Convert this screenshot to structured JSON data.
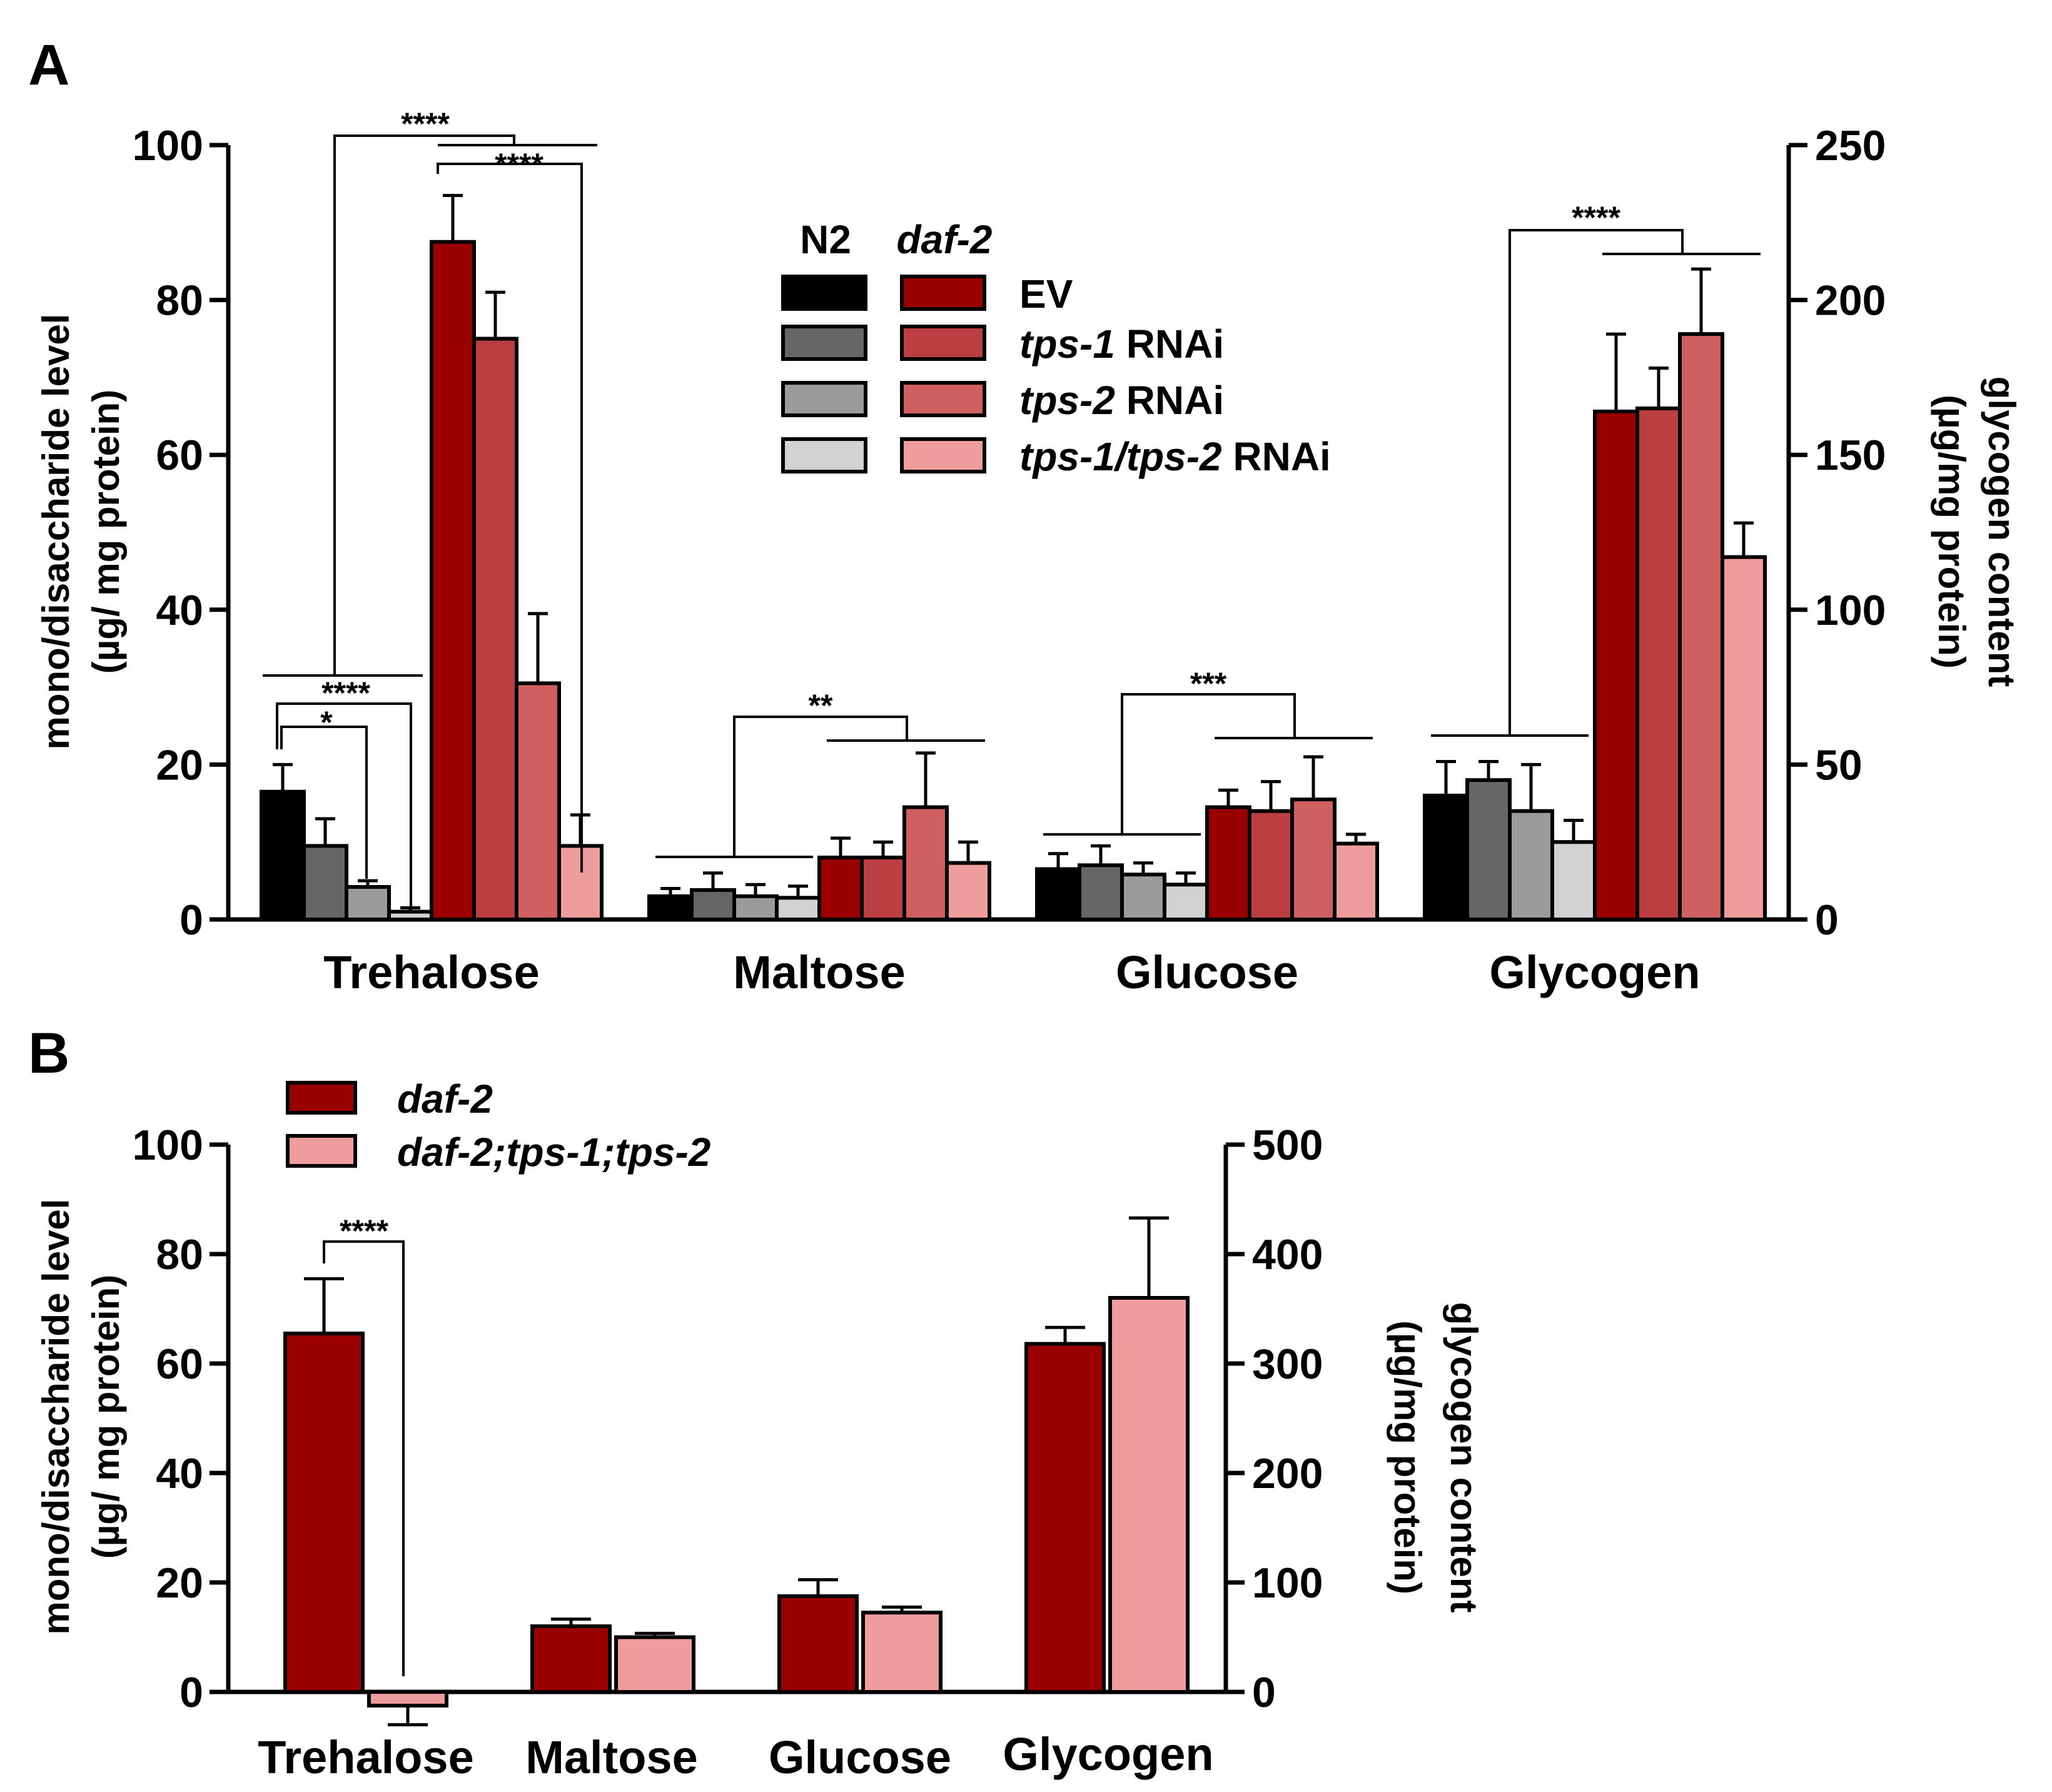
{
  "colors": {
    "N2 EV": "#000000",
    "N2 tps-1 RNAi": "#666666",
    "N2 tps-2 RNAi": "#9b9b9b",
    "N2 tps-1/tps-2 RNAi": "#d2d2d2",
    "daf-2 EV": "#9b0000",
    "daf-2 tps-1 RNAi": "#bb3f41",
    "daf-2 tps-2 RNAi": "#d05f60",
    "daf-2 tps-1/tps-2 RNAi": "#ee9c9c",
    "daf-2 (B)": "#9b0000",
    "daf-2;tps-1;tps-2 (B)": "#ee9c9c"
  },
  "chart_data": [
    {
      "panel": "A",
      "type": "bar",
      "ylabel_line1": "mono/disaccharide level",
      "ylabel_line2": "(µg/ mg protein)",
      "y2label_line1": "glycogen content",
      "y2label_line2": "(µg/mg protein)",
      "ylim": [
        0,
        100
      ],
      "y2lim": [
        0,
        250
      ],
      "yticks": [
        0,
        20,
        40,
        60,
        80,
        100
      ],
      "y2ticks": [
        0,
        50,
        100,
        150,
        200,
        250
      ],
      "categories": [
        "Trehalose",
        "Maltose",
        "Glucose",
        "Glycogen"
      ],
      "legend": {
        "col_headers": [
          "N2",
          "daf-2"
        ],
        "row_labels": [
          {
            "italic": "",
            "plain": "EV"
          },
          {
            "italic": "tps-1",
            "plain": " RNAi"
          },
          {
            "italic": "tps-2",
            "plain": " RNAi"
          },
          {
            "italic": "tps-1/tps-2",
            "plain": " RNAi"
          }
        ]
      },
      "series": [
        {
          "name": "N2 EV",
          "values": [
            16.5,
            3.0,
            6.5,
            40
          ],
          "errors": [
            3.5,
            1.0,
            2.0,
            11
          ]
        },
        {
          "name": "N2 tps-1 RNAi",
          "values": [
            9.5,
            3.8,
            7.0,
            45
          ],
          "errors": [
            3.5,
            2.2,
            2.5,
            6
          ]
        },
        {
          "name": "N2 tps-2 RNAi",
          "values": [
            4.2,
            3.0,
            5.8,
            35
          ],
          "errors": [
            0.8,
            1.5,
            1.5,
            15
          ]
        },
        {
          "name": "N2 tps-1/tps-2 RNAi",
          "values": [
            1.0,
            2.8,
            4.5,
            25
          ],
          "errors": [
            0.5,
            1.5,
            1.5,
            7
          ]
        },
        {
          "name": "daf-2 EV",
          "values": [
            87.5,
            8.0,
            14.5,
            164
          ],
          "errors": [
            6.0,
            2.5,
            2.2,
            25
          ]
        },
        {
          "name": "daf-2 tps-1 RNAi",
          "values": [
            75.0,
            8.0,
            14.0,
            165
          ],
          "errors": [
            6.0,
            2.0,
            3.8,
            13
          ]
        },
        {
          "name": "daf-2 tps-2 RNAi",
          "values": [
            30.5,
            14.5,
            15.5,
            189
          ],
          "errors": [
            9.0,
            7.0,
            5.5,
            21
          ]
        },
        {
          "name": "daf-2 tps-1/tps-2 RNAi",
          "values": [
            9.5,
            7.3,
            9.8,
            117
          ],
          "errors": [
            4.0,
            2.7,
            1.2,
            11
          ]
        }
      ],
      "significance": [
        {
          "category": "Trehalose",
          "label": "****",
          "compare": "N2 group vs daf-2 group"
        },
        {
          "category": "Trehalose",
          "label": "****",
          "compare": "daf-2 EV/tps-1/tps-2 vs daf-2 tps-1/tps-2 RNAi"
        },
        {
          "category": "Trehalose",
          "label": "****",
          "compare": "N2 EV vs N2 tps-1/tps-2 RNAi"
        },
        {
          "category": "Trehalose",
          "label": "*",
          "compare": "N2 EV vs N2 tps-2 RNAi"
        },
        {
          "category": "Maltose",
          "label": "**",
          "compare": "N2 group vs daf-2 group"
        },
        {
          "category": "Glucose",
          "label": "***",
          "compare": "N2 group vs daf-2 group"
        },
        {
          "category": "Glycogen",
          "label": "****",
          "compare": "N2 group vs daf-2 group"
        }
      ]
    },
    {
      "panel": "B",
      "type": "bar",
      "ylabel_line1": "mono/disaccharide level",
      "ylabel_line2": "(µg/ mg protein)",
      "y2label_line1": "glycogen content",
      "y2label_line2": "(µg/mg protein)",
      "ylim": [
        0,
        100
      ],
      "y2lim": [
        0,
        500
      ],
      "yticks": [
        0,
        20,
        40,
        60,
        80,
        100
      ],
      "y2ticks": [
        0,
        100,
        200,
        300,
        400,
        500
      ],
      "categories": [
        "Trehalose",
        "Maltose",
        "Glucose",
        "Glycogen"
      ],
      "legend": {
        "entries": [
          {
            "italic": "daf-2"
          },
          {
            "italic": "daf-2;tps-1;tps-2"
          }
        ]
      },
      "series": [
        {
          "name": "daf-2",
          "values": [
            65.5,
            12.0,
            17.5,
            318
          ],
          "errors": [
            10.0,
            1.3,
            3.0,
            15
          ]
        },
        {
          "name": "daf-2;tps-1;tps-2",
          "values": [
            -2.5,
            10.0,
            14.5,
            360
          ],
          "errors": [
            3.5,
            0.7,
            1.0,
            73
          ]
        }
      ],
      "significance": [
        {
          "category": "Trehalose",
          "label": "****",
          "compare": "daf-2 vs daf-2;tps-1;tps-2"
        }
      ]
    }
  ]
}
